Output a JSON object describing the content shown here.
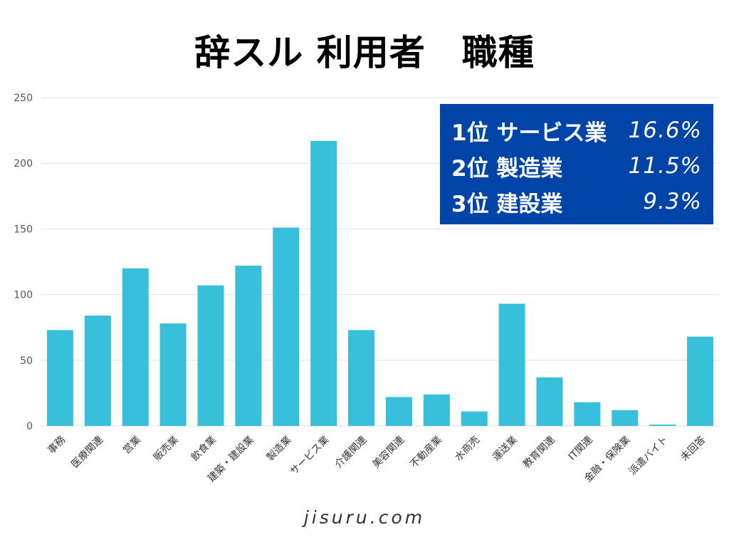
{
  "title": "辞スル 利用者　職種",
  "footer": "jisuru.com",
  "colors": {
    "bar": "#38bfd9",
    "summary_bg": "#0044a8",
    "grid": "#e2e2e2",
    "axis_text": "#555555"
  },
  "summary": [
    {
      "rank": "1位",
      "job": "サービス業",
      "pct": "16.6%"
    },
    {
      "rank": "2位",
      "job": "製造業",
      "pct": "11.5%"
    },
    {
      "rank": "3位",
      "job": "建設業",
      "pct": "9.3%"
    }
  ],
  "chart_data": {
    "type": "bar",
    "title": "辞スル 利用者　職種",
    "categories": [
      "事務",
      "医療関連",
      "営業",
      "販売業",
      "飲食業",
      "建築・建設業",
      "製造業",
      "サービス業",
      "介護関連",
      "美容関連",
      "不動産業",
      "水商売",
      "運送業",
      "教育関連",
      "IT関連",
      "金融・保険業",
      "派遣バイト",
      "未回答"
    ],
    "values": [
      73,
      84,
      120,
      78,
      107,
      122,
      151,
      217,
      73,
      22,
      24,
      11,
      93,
      37,
      18,
      12,
      1,
      68
    ],
    "ylim": [
      0,
      250
    ],
    "yticks": [
      0,
      50,
      100,
      150,
      200,
      250
    ],
    "grid": true,
    "xlabel": "",
    "ylabel": ""
  }
}
